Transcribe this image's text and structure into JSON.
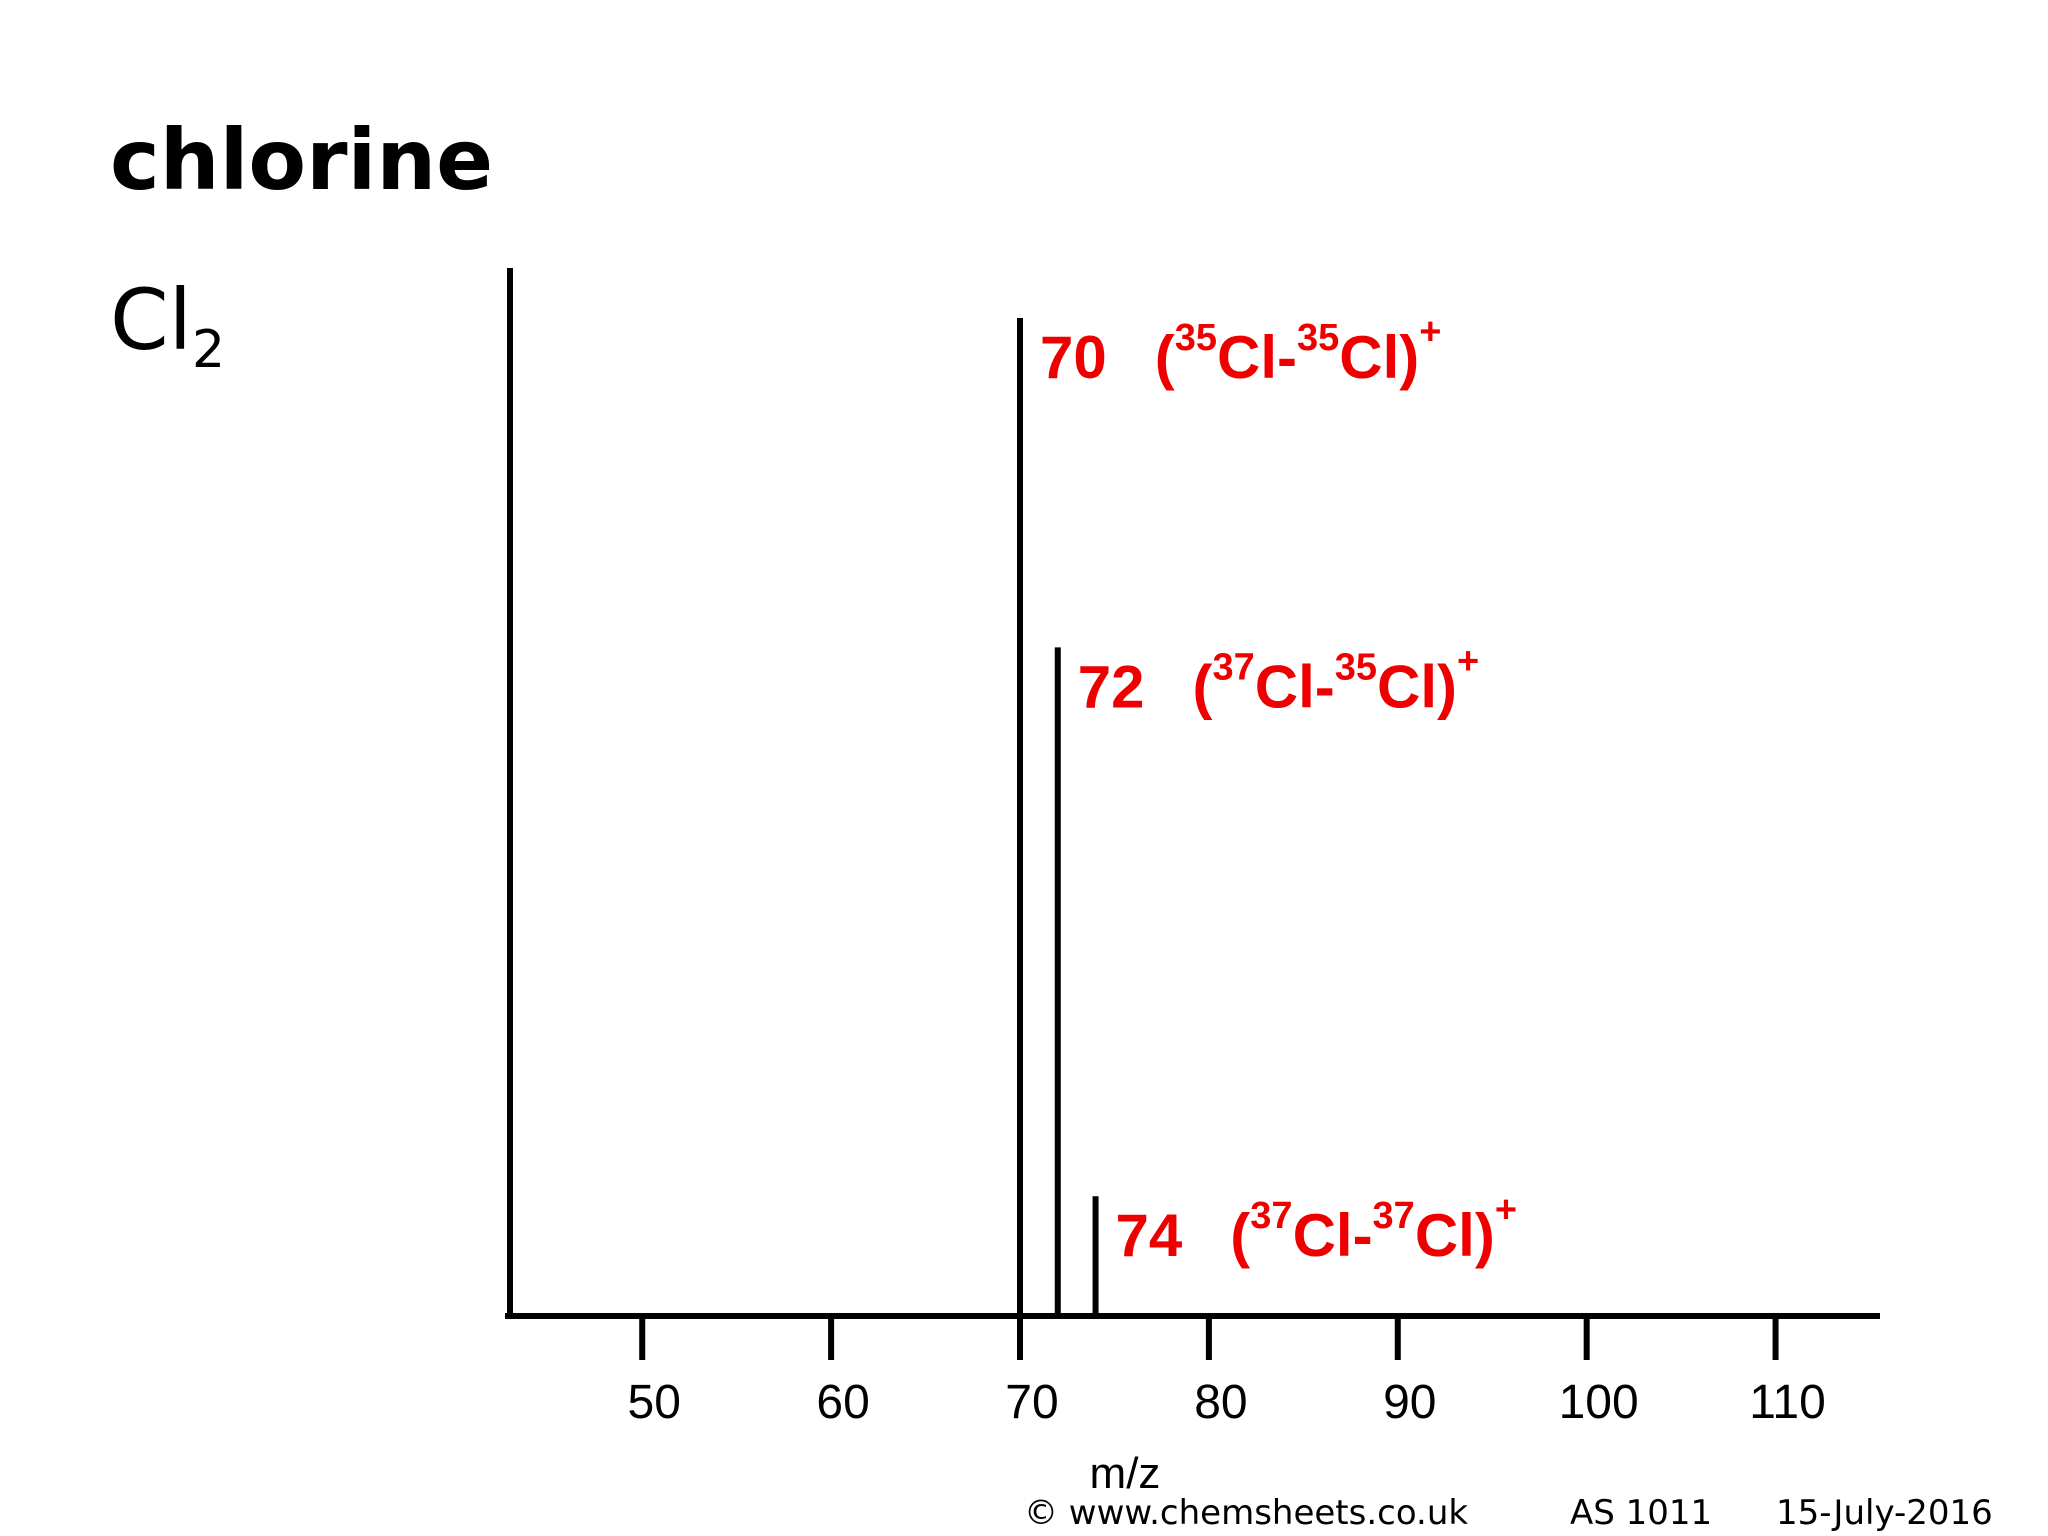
{
  "header": {
    "title": "chlorine",
    "formula_main": "Cl",
    "formula_sub": "2"
  },
  "footer": {
    "copyright": "© www.chemsheets.co.uk",
    "code": "AS 1011",
    "date": "15-July-2016"
  },
  "chart_data": {
    "type": "bar",
    "title": "",
    "xlabel": "m/z",
    "ylabel": "",
    "xlim": [
      43,
      115
    ],
    "ylim": [
      0,
      100
    ],
    "xticks": [
      50,
      60,
      70,
      80,
      90,
      100,
      110
    ],
    "grid": false,
    "peaks": [
      {
        "mz": 70,
        "relative_abundance": 100,
        "mass_label": "70",
        "iso1": "35",
        "iso2": "35",
        "charge": "+"
      },
      {
        "mz": 72,
        "relative_abundance": 67,
        "mass_label": "72",
        "iso1": "37",
        "iso2": "35",
        "charge": "+"
      },
      {
        "mz": 74,
        "relative_abundance": 12,
        "mass_label": "74",
        "iso1": "37",
        "iso2": "37",
        "charge": "+"
      }
    ],
    "colors": {
      "axis": "#000000",
      "peak": "#000000",
      "label": "#ee0000"
    }
  }
}
